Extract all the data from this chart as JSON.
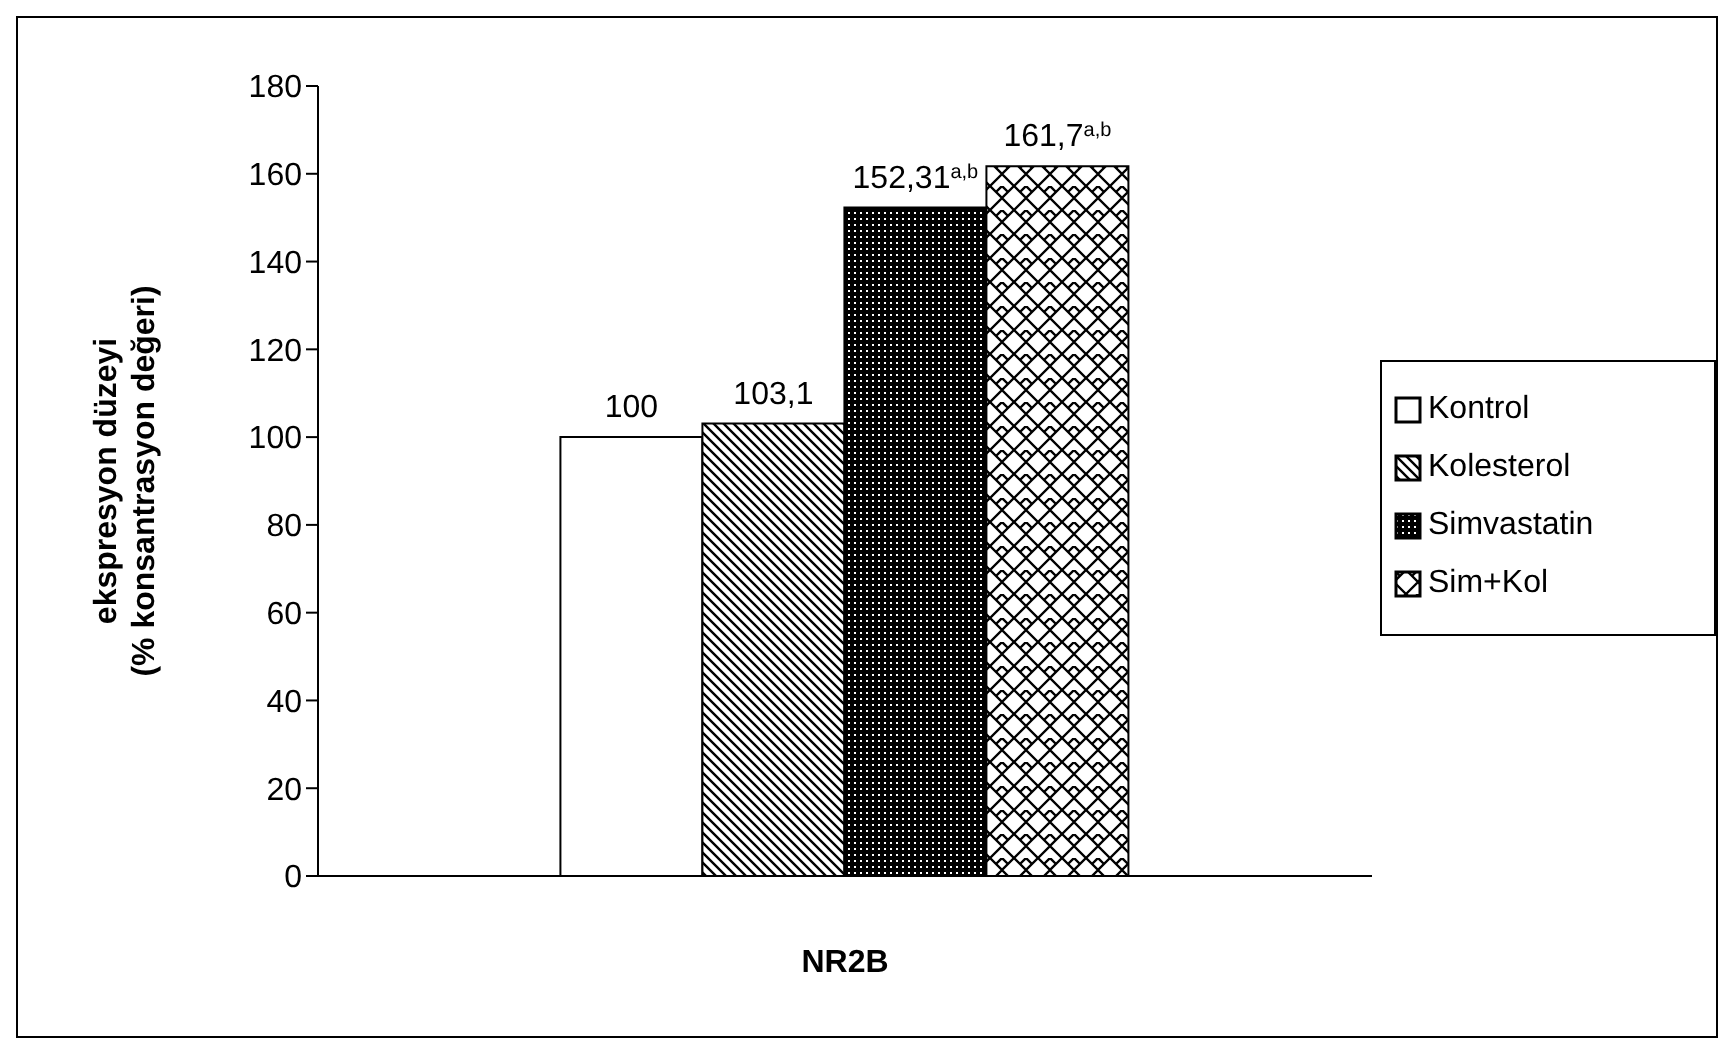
{
  "chart_data": {
    "type": "bar",
    "xlabel": "NR2B",
    "ylabel": "ekspresyon düzeyi\n(% konsantrasyon değeri)",
    "categories": [
      null
    ],
    "ylim": [
      0,
      180
    ],
    "yticks": [
      0,
      20,
      40,
      60,
      80,
      100,
      120,
      140,
      160,
      180
    ],
    "grid": false,
    "legend": "right",
    "series": [
      {
        "name": "Kontrol",
        "color": "#ffffff",
        "values": [
          100
        ],
        "value_labels": [
          "100"
        ]
      },
      {
        "name": "Kolesterol",
        "color": "#000000",
        "values": [
          103.1
        ],
        "value_labels": [
          "103,1"
        ]
      },
      {
        "name": "Simvastatin",
        "color": "#000000",
        "values": [
          152.31
        ],
        "value_labels": [
          "152,31$^{a,b}$"
        ]
      },
      {
        "name": "Sim+Kol",
        "color": "#000000",
        "values": [
          161.7
        ],
        "value_labels": [
          "161,7$^{a,b}$"
        ]
      }
    ]
  }
}
